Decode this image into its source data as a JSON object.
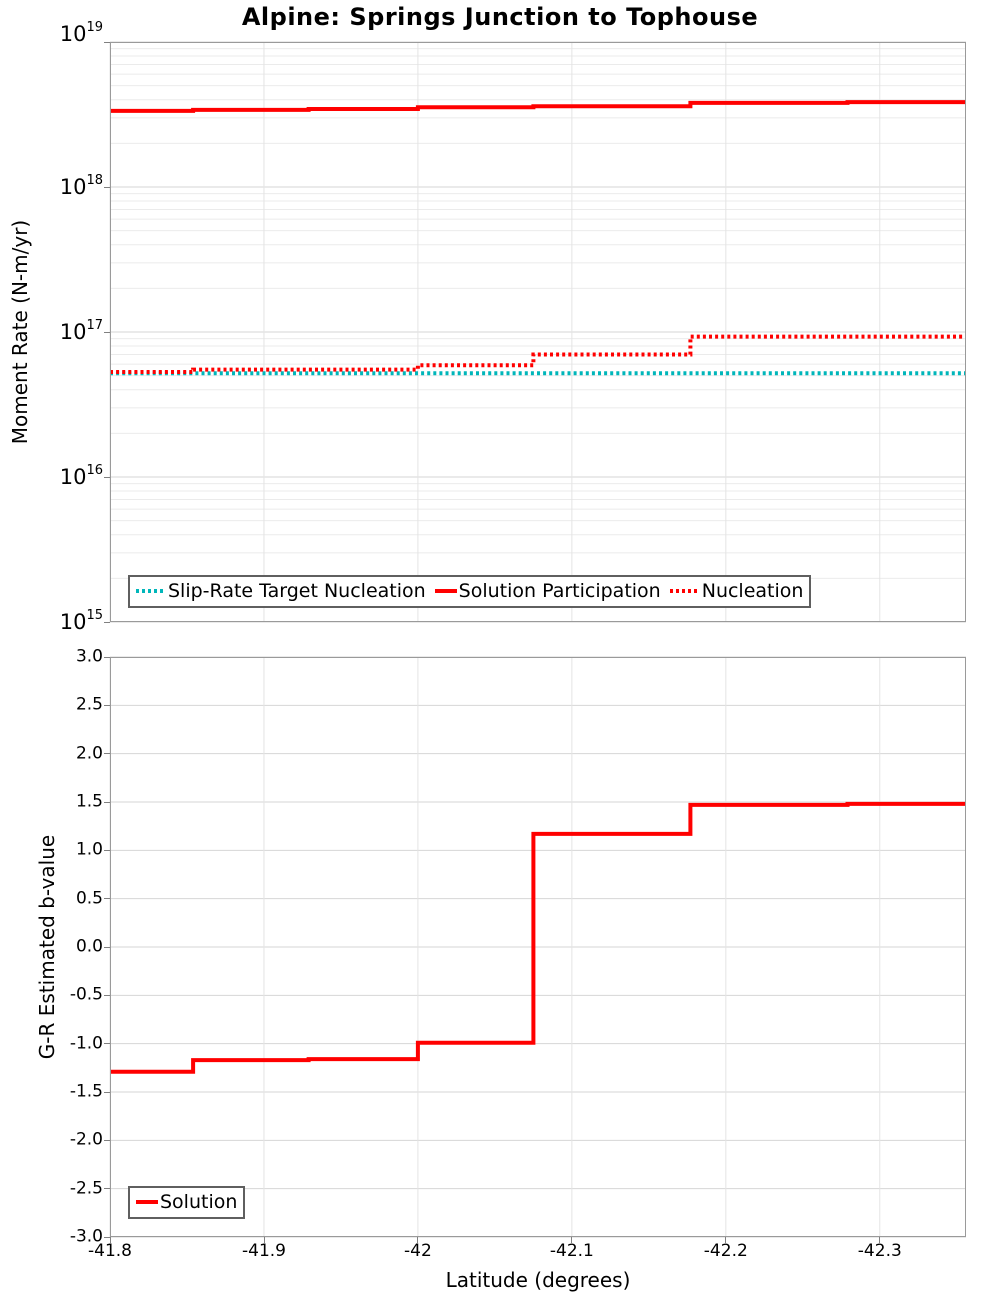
{
  "page": {
    "background": "#ffffff"
  },
  "colors": {
    "series_red": "#ff0000",
    "series_cyan": "#00b6ba",
    "grid_minor": "#ebebeb",
    "grid_major": "#d6d6d6",
    "grid_vertical": "#e4e4e4",
    "frame": "#9a9a9a",
    "tick": "#808080",
    "text": "#000000"
  },
  "chart_data": [
    {
      "type": "line",
      "subtype": "step",
      "title": "Alpine: Springs Junction to Tophouse",
      "xlabel": "",
      "ylabel": "Moment Rate (N-m/yr)",
      "yscale": "log",
      "ylim": [
        1000000000000000.0,
        1e+19
      ],
      "xlim": [
        -41.8,
        -42.356
      ],
      "x_ticks": [
        -41.8,
        -41.9,
        -42,
        -42.1,
        -42.2,
        -42.3
      ],
      "x_tick_labels": [
        "-41.8",
        "-41.9",
        "-42",
        "-42.1",
        "-42.2",
        "-42.3"
      ],
      "x_tick_labels_visible": false,
      "y_tick_base": 10,
      "y_tick_exponents": [
        19,
        18,
        17,
        16,
        15
      ],
      "grid": true,
      "legend_position": "bottom-left-inside",
      "segment_edges_latitude": [
        -41.8,
        -41.854,
        -41.929,
        -42.0,
        -42.075,
        -42.177,
        -42.279,
        -42.356
      ],
      "series": [
        {
          "name": "Slip-Rate Target Nucleation",
          "color": "#00b6ba",
          "style": "dotted",
          "values": [
            5.2e+16,
            5.2e+16,
            5.2e+16,
            5.2e+16,
            5.2e+16,
            5.2e+16,
            5.2e+16
          ]
        },
        {
          "name": "Solution Participation",
          "color": "#ff0000",
          "style": "solid",
          "values": [
            3.35e+18,
            3.4e+18,
            3.45e+18,
            3.55e+18,
            3.6e+18,
            3.8e+18,
            3.85e+18
          ]
        },
        {
          "name": "Nucleation",
          "color": "#ff0000",
          "style": "dotted",
          "values": [
            5.3e+16,
            5.5e+16,
            5.5e+16,
            5.9e+16,
            7e+16,
            9.3e+16,
            9.3e+16
          ]
        }
      ]
    },
    {
      "type": "line",
      "subtype": "step",
      "title": "",
      "xlabel": "Latitude (degrees)",
      "ylabel": "G-R Estimated b-value",
      "yscale": "linear",
      "ylim": [
        -3.0,
        3.0
      ],
      "xlim": [
        -41.8,
        -42.356
      ],
      "x_ticks": [
        -41.8,
        -41.9,
        -42,
        -42.1,
        -42.2,
        -42.3
      ],
      "x_tick_labels": [
        "-41.8",
        "-41.9",
        "-42",
        "-42.1",
        "-42.2",
        "-42.3"
      ],
      "x_tick_labels_visible": true,
      "y_ticks": [
        3.0,
        2.5,
        2.0,
        1.5,
        1.0,
        0.5,
        0.0,
        -0.5,
        -1.0,
        -1.5,
        -2.0,
        -2.5,
        -3.0
      ],
      "y_tick_labels": [
        "3.0",
        "2.5",
        "2.0",
        "1.5",
        "1.0",
        "0.5",
        "0.0",
        "-0.5",
        "-1.0",
        "-1.5",
        "-2.0",
        "-2.5",
        "-3.0"
      ],
      "grid": true,
      "legend_position": "bottom-left-inside",
      "segment_edges_latitude": [
        -41.8,
        -41.854,
        -41.929,
        -42.0,
        -42.075,
        -42.177,
        -42.279,
        -42.356
      ],
      "series": [
        {
          "name": "Solution",
          "color": "#ff0000",
          "style": "solid",
          "values": [
            -1.29,
            -1.17,
            -1.16,
            -0.99,
            1.17,
            1.47,
            1.48
          ]
        }
      ]
    }
  ]
}
